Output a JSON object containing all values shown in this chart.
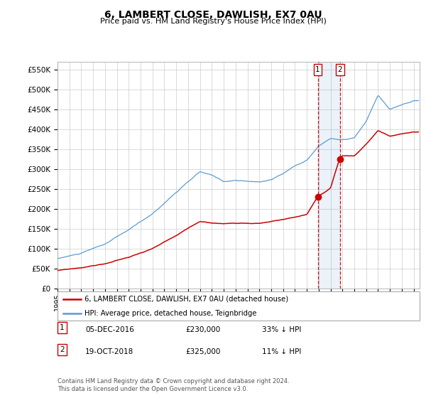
{
  "title": "6, LAMBERT CLOSE, DAWLISH, EX7 0AU",
  "subtitle": "Price paid vs. HM Land Registry's House Price Index (HPI)",
  "ytick_values": [
    0,
    50000,
    100000,
    150000,
    200000,
    250000,
    300000,
    350000,
    400000,
    450000,
    500000,
    550000
  ],
  "ylim": [
    0,
    570000
  ],
  "xlim_start": 1995.0,
  "xlim_end": 2025.5,
  "red_line_color": "#cc0000",
  "blue_line_color": "#5b9bd5",
  "grid_color": "#cccccc",
  "transaction1_x": 2016.92,
  "transaction1_y": 230000,
  "transaction1_label": "1",
  "transaction2_x": 2018.79,
  "transaction2_y": 325000,
  "transaction2_label": "2",
  "legend_red_label": "6, LAMBERT CLOSE, DAWLISH, EX7 0AU (detached house)",
  "legend_blue_label": "HPI: Average price, detached house, Teignbridge",
  "table_row1": [
    "1",
    "05-DEC-2016",
    "£230,000",
    "33% ↓ HPI"
  ],
  "table_row2": [
    "2",
    "19-OCT-2018",
    "£325,000",
    "11% ↓ HPI"
  ],
  "footer": "Contains HM Land Registry data © Crown copyright and database right 2024.\nThis data is licensed under the Open Government Licence v3.0."
}
